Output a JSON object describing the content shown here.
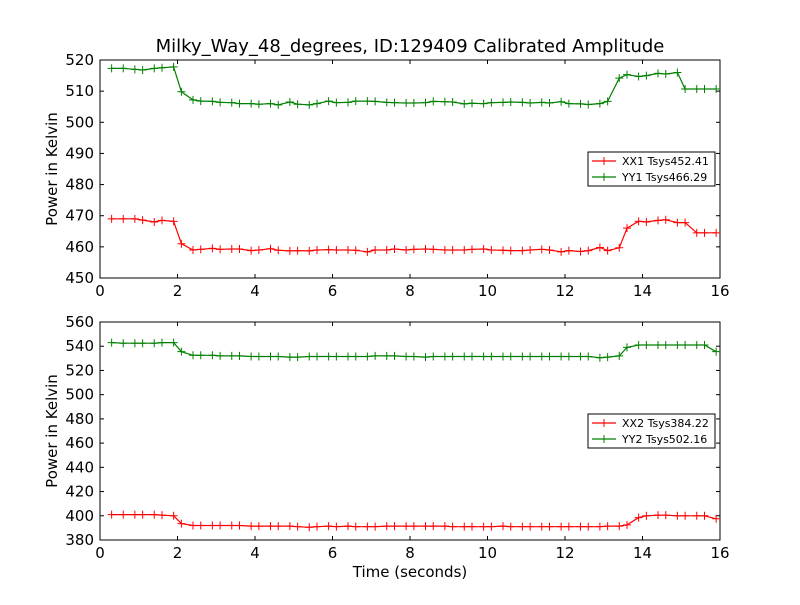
{
  "figure": {
    "title": "Milky_Way_48_degrees, ID:129409 Calibrated Amplitude"
  },
  "chart_data": [
    {
      "type": "line",
      "title": "Milky_Way_48_degrees, ID:129409 Calibrated Amplitude",
      "xlabel": "",
      "ylabel": "Power in Kelvin",
      "xlim": [
        0,
        16
      ],
      "ylim": [
        450,
        520
      ],
      "xticks": [
        0,
        2,
        4,
        6,
        8,
        10,
        12,
        14,
        16
      ],
      "yticks": [
        450,
        460,
        470,
        480,
        490,
        500,
        510,
        520
      ],
      "grid": false,
      "legend_position": "center-right",
      "x": [
        0.3,
        0.6,
        0.9,
        1.1,
        1.4,
        1.6,
        1.9,
        2.1,
        2.4,
        2.6,
        2.9,
        3.1,
        3.4,
        3.6,
        3.9,
        4.1,
        4.4,
        4.6,
        4.9,
        5.1,
        5.4,
        5.6,
        5.9,
        6.1,
        6.4,
        6.6,
        6.9,
        7.1,
        7.4,
        7.6,
        7.9,
        8.1,
        8.4,
        8.6,
        8.9,
        9.1,
        9.4,
        9.6,
        9.9,
        10.1,
        10.4,
        10.6,
        10.9,
        11.1,
        11.4,
        11.6,
        11.9,
        12.1,
        12.4,
        12.6,
        12.9,
        13.1,
        13.4,
        13.6,
        13.9,
        14.1,
        14.4,
        14.6,
        14.9,
        15.1,
        15.4,
        15.6,
        15.9
      ],
      "series": [
        {
          "name": "XX1 Tsys452.41",
          "color": "#ff0000",
          "values": [
            469,
            469,
            469,
            468.6,
            468,
            468.5,
            468.2,
            461,
            459,
            459.2,
            459.5,
            459.2,
            459.3,
            459.3,
            458.8,
            459,
            459.4,
            458.9,
            458.7,
            458.8,
            458.7,
            459,
            459.1,
            459,
            459,
            458.9,
            458.4,
            459,
            459,
            459.3,
            459,
            459.2,
            459.3,
            459.2,
            459,
            459,
            459,
            459.2,
            459.3,
            459,
            458.9,
            458.8,
            458.8,
            459,
            459.2,
            459,
            458.4,
            458.8,
            458.5,
            458.8,
            459.8,
            458.8,
            459.7,
            466,
            468.2,
            468,
            468.5,
            468.7,
            467.8,
            467.8,
            464.5,
            464.5,
            464.5
          ]
        },
        {
          "name": "YY1 Tsys466.29",
          "color": "#008000",
          "values": [
            517.3,
            517.3,
            517,
            516.8,
            517.3,
            517.5,
            517.8,
            509.8,
            507.2,
            506.8,
            506.7,
            506.4,
            506.3,
            506,
            506,
            505.8,
            506,
            505.6,
            506.5,
            505.8,
            505.6,
            506,
            506.8,
            506.3,
            506.4,
            506.8,
            506.8,
            506.7,
            506.4,
            506.3,
            506.2,
            506.2,
            506.3,
            506.7,
            506.6,
            506.5,
            505.9,
            506.1,
            506,
            506.3,
            506.4,
            506.5,
            506.4,
            506.2,
            506.4,
            506.2,
            506.6,
            506,
            505.9,
            505.7,
            506,
            506.7,
            514.2,
            515.3,
            514.7,
            515,
            515.7,
            515.5,
            516,
            510.7,
            510.7,
            510.7,
            510.7
          ]
        }
      ]
    },
    {
      "type": "line",
      "title": "",
      "xlabel": "Time (seconds)",
      "ylabel": "Power in Kelvin",
      "xlim": [
        0,
        16
      ],
      "ylim": [
        380,
        560
      ],
      "xticks": [
        0,
        2,
        4,
        6,
        8,
        10,
        12,
        14,
        16
      ],
      "yticks": [
        380,
        400,
        420,
        440,
        460,
        480,
        500,
        520,
        540,
        560
      ],
      "grid": false,
      "legend_position": "center-right",
      "x": [
        0.3,
        0.6,
        0.9,
        1.1,
        1.4,
        1.6,
        1.9,
        2.1,
        2.4,
        2.6,
        2.9,
        3.1,
        3.4,
        3.6,
        3.9,
        4.1,
        4.4,
        4.6,
        4.9,
        5.1,
        5.4,
        5.6,
        5.9,
        6.1,
        6.4,
        6.6,
        6.9,
        7.1,
        7.4,
        7.6,
        7.9,
        8.1,
        8.4,
        8.6,
        8.9,
        9.1,
        9.4,
        9.6,
        9.9,
        10.1,
        10.4,
        10.6,
        10.9,
        11.1,
        11.4,
        11.6,
        11.9,
        12.1,
        12.4,
        12.6,
        12.9,
        13.1,
        13.4,
        13.6,
        13.9,
        14.1,
        14.4,
        14.6,
        14.9,
        15.1,
        15.4,
        15.6,
        15.9
      ],
      "series": [
        {
          "name": "XX2 Tsys384.22",
          "color": "#ff0000",
          "values": [
            401,
            401,
            401,
            401,
            401,
            400.5,
            400,
            393.5,
            392,
            392,
            392,
            392,
            392,
            392,
            391.5,
            391.5,
            391.5,
            391.5,
            391.5,
            391,
            390.5,
            391,
            391.5,
            391,
            391.5,
            391,
            391,
            391,
            391.5,
            391.5,
            391.5,
            391.5,
            391.5,
            391.5,
            391.5,
            391,
            391,
            391,
            391,
            391,
            391.5,
            391,
            391,
            391,
            391,
            391,
            391,
            391,
            391,
            391,
            391,
            391.5,
            391.5,
            392.5,
            398.5,
            400,
            400.5,
            400.5,
            400,
            400,
            400,
            400,
            397.5
          ]
        },
        {
          "name": "YY2 Tsys502.16",
          "color": "#008000",
          "values": [
            543,
            542.5,
            542.5,
            542.5,
            542.5,
            543,
            543,
            535.5,
            532.5,
            532.5,
            532.5,
            532,
            532,
            532,
            531.5,
            531.5,
            531.5,
            531.5,
            531,
            531,
            531.5,
            531.5,
            531.5,
            531.5,
            531.5,
            531.5,
            531.5,
            532,
            532,
            532,
            531.5,
            531.5,
            531,
            531.5,
            531.5,
            531.5,
            531.5,
            531.5,
            531.5,
            531.5,
            531.5,
            531.5,
            531.5,
            531.5,
            531.5,
            531.5,
            531.5,
            531.5,
            531.5,
            531.5,
            530.5,
            531,
            532,
            539,
            541,
            541,
            541,
            541,
            541,
            541,
            541,
            541,
            535.5
          ]
        }
      ]
    }
  ]
}
